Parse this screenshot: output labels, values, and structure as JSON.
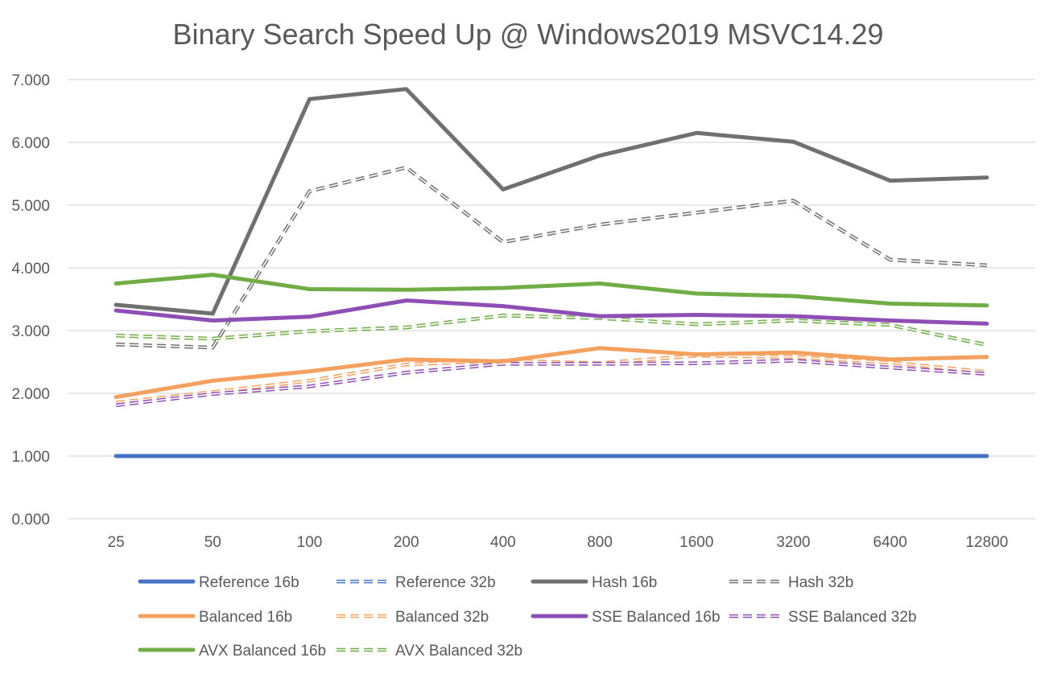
{
  "chart_data": {
    "type": "line",
    "title": "Binary Search Speed Up @ Windows2019 MSVC14.29",
    "xlabel": "",
    "ylabel": "",
    "categories": [
      "25",
      "50",
      "100",
      "200",
      "400",
      "800",
      "1600",
      "3200",
      "6400",
      "12800"
    ],
    "ylim": [
      0,
      7
    ],
    "yticks": [
      "0.000",
      "1.000",
      "2.000",
      "3.000",
      "4.000",
      "5.000",
      "6.000",
      "7.000"
    ],
    "grid": true,
    "legend_position": "bottom",
    "series": [
      {
        "name": "Reference 16b",
        "color": "#4472C4",
        "dashed": false,
        "values": [
          1.0,
          1.0,
          1.0,
          1.0,
          1.0,
          1.0,
          1.0,
          1.0,
          1.0,
          1.0
        ]
      },
      {
        "name": "Reference 32b",
        "color": "#4472C4",
        "dashed": true,
        "values": [
          1.0,
          1.0,
          1.0,
          1.0,
          1.0,
          1.0,
          1.0,
          1.0,
          1.0,
          1.0
        ]
      },
      {
        "name": "Hash 16b",
        "color": "#707070",
        "dashed": false,
        "values": [
          3.41,
          3.27,
          6.69,
          6.85,
          5.25,
          5.79,
          6.15,
          6.01,
          5.39,
          5.44
        ]
      },
      {
        "name": "Hash 32b",
        "color": "#707070",
        "dashed": true,
        "values": [
          2.78,
          2.73,
          5.22,
          5.6,
          4.41,
          4.69,
          4.88,
          5.07,
          4.13,
          4.04
        ]
      },
      {
        "name": "Balanced 16b",
        "color": "#F4A15F",
        "dashed": false,
        "values": [
          1.94,
          2.2,
          2.35,
          2.54,
          2.51,
          2.72,
          2.62,
          2.65,
          2.54,
          2.58
        ]
      },
      {
        "name": "Balanced 32b",
        "color": "#F4A15F",
        "dashed": true,
        "values": [
          1.85,
          2.02,
          2.2,
          2.46,
          2.52,
          2.48,
          2.6,
          2.58,
          2.49,
          2.34
        ]
      },
      {
        "name": "SSE Balanced 16b",
        "color": "#8E4FB4",
        "dashed": false,
        "values": [
          3.32,
          3.16,
          3.22,
          3.48,
          3.39,
          3.23,
          3.25,
          3.23,
          3.16,
          3.11
        ]
      },
      {
        "name": "SSE Balanced 32b",
        "color": "#8E4FB4",
        "dashed": true,
        "values": [
          1.81,
          1.99,
          2.11,
          2.33,
          2.47,
          2.47,
          2.48,
          2.52,
          2.41,
          2.31
        ]
      },
      {
        "name": "AVX Balanced 16b",
        "color": "#70AD47",
        "dashed": false,
        "values": [
          3.75,
          3.89,
          3.66,
          3.65,
          3.68,
          3.75,
          3.59,
          3.55,
          3.43,
          3.4
        ]
      },
      {
        "name": "AVX Balanced 32b",
        "color": "#70AD47",
        "dashed": true,
        "values": [
          2.92,
          2.87,
          2.99,
          3.05,
          3.24,
          3.2,
          3.1,
          3.16,
          3.09,
          2.77
        ]
      }
    ]
  }
}
